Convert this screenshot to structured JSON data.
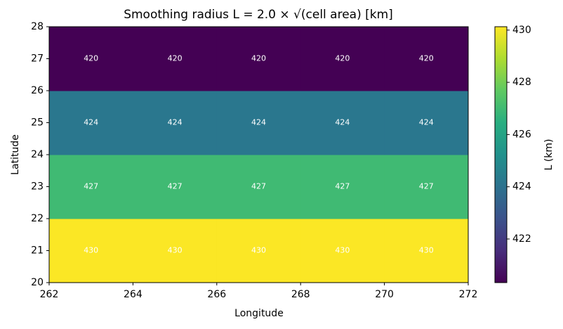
{
  "chart_data": {
    "type": "heatmap",
    "title": "Smoothing radius L = 2.0 × √(cell area)   [km]",
    "xlabel": "Longitude",
    "ylabel": "Latitude",
    "x_edges": [
      262,
      264,
      266,
      268,
      270,
      272
    ],
    "y_edges": [
      20,
      22,
      24,
      26,
      28
    ],
    "values": [
      [
        430.1,
        430.1,
        430.1,
        430.1,
        430.1
      ],
      [
        427.0,
        427.0,
        427.0,
        427.0,
        427.0
      ],
      [
        424.2,
        424.2,
        424.2,
        424.2,
        424.2
      ],
      [
        420.3,
        420.3,
        420.3,
        420.3,
        420.3
      ]
    ],
    "value_labels": [
      [
        "430",
        "430",
        "430",
        "430",
        "430"
      ],
      [
        "427",
        "427",
        "427",
        "427",
        "427"
      ],
      [
        "424",
        "424",
        "424",
        "424",
        "424"
      ],
      [
        "420",
        "420",
        "420",
        "420",
        "420"
      ]
    ],
    "xlim": [
      262,
      272
    ],
    "xticks": [
      262,
      264,
      266,
      268,
      270,
      272
    ],
    "ylim": [
      20,
      28
    ],
    "yticks": [
      20,
      21,
      22,
      23,
      24,
      25,
      26,
      27,
      28
    ],
    "colormap": "viridis",
    "clim": [
      420.33,
      430.13
    ],
    "cticks": [
      422,
      424,
      426,
      428,
      430
    ],
    "colorbar_label": "L (km)"
  }
}
